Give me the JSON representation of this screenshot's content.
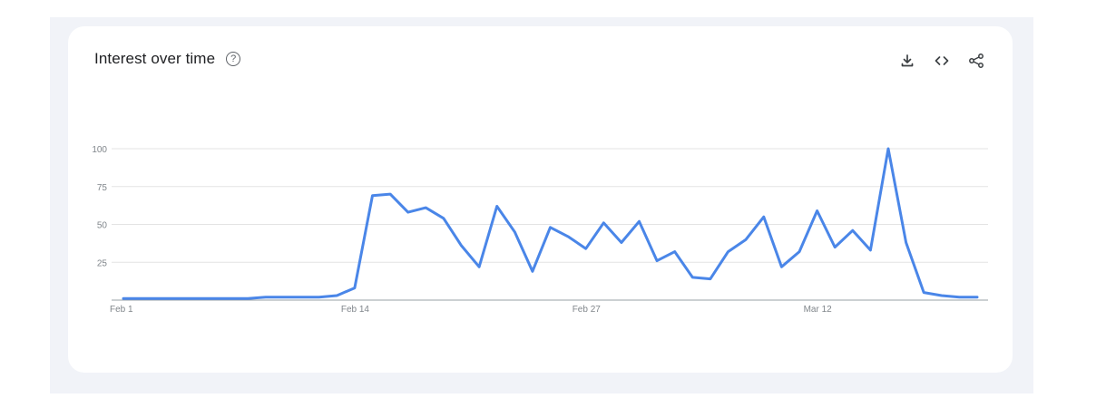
{
  "header": {
    "title": "Interest over time",
    "help_glyph": "?"
  },
  "icons": {
    "help": "help-circle-icon",
    "download": "download-icon",
    "embed": "code-icon",
    "share": "share-icon"
  },
  "colors": {
    "line": "#4a86e8",
    "grid": "#e3e3e3",
    "axis": "#9aa0a6",
    "page_bg": "#f1f3f8",
    "card_bg": "#ffffff"
  },
  "chart_data": {
    "type": "line",
    "title": "Interest over time",
    "xlabel": "",
    "ylabel": "",
    "ylim": [
      0,
      100
    ],
    "yticks": [
      25,
      50,
      75,
      100
    ],
    "ytick_labels": [
      "25",
      "50",
      "75",
      "100"
    ],
    "grid": true,
    "xtick_labels": [
      {
        "label": "Feb 1",
        "index": 0
      },
      {
        "label": "Feb 14",
        "index": 13
      },
      {
        "label": "Feb 27",
        "index": 26
      },
      {
        "label": "Mar 12",
        "index": 39
      }
    ],
    "series": [
      {
        "values": [
          1,
          1,
          1,
          1,
          1,
          1,
          1,
          1,
          2,
          2,
          2,
          2,
          3,
          8,
          69,
          70,
          58,
          61,
          54,
          36,
          22,
          62,
          45,
          19,
          48,
          42,
          34,
          51,
          38,
          52,
          26,
          32,
          15,
          14,
          32,
          40,
          55,
          22,
          32,
          59,
          35,
          46,
          33,
          100,
          38,
          5,
          3,
          2,
          2
        ]
      }
    ]
  }
}
